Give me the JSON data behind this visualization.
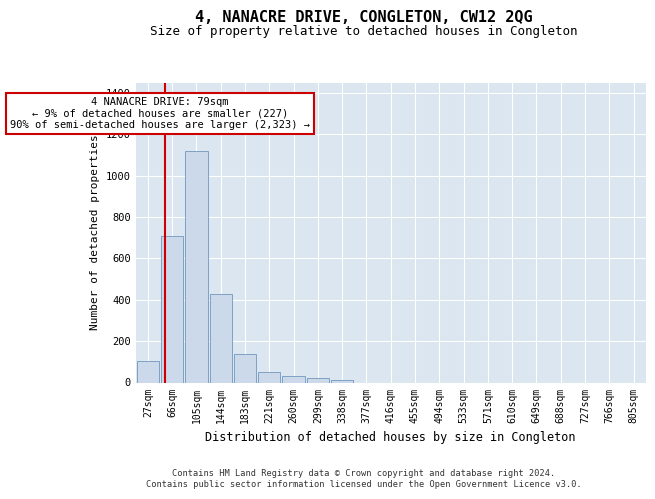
{
  "title": "4, NANACRE DRIVE, CONGLETON, CW12 2QG",
  "subtitle": "Size of property relative to detached houses in Congleton",
  "xlabel": "Distribution of detached houses by size in Congleton",
  "ylabel": "Number of detached properties",
  "bar_labels": [
    "27sqm",
    "66sqm",
    "105sqm",
    "144sqm",
    "183sqm",
    "221sqm",
    "260sqm",
    "299sqm",
    "338sqm",
    "377sqm",
    "416sqm",
    "455sqm",
    "494sqm",
    "533sqm",
    "571sqm",
    "610sqm",
    "649sqm",
    "688sqm",
    "727sqm",
    "766sqm",
    "805sqm"
  ],
  "bar_values": [
    105,
    710,
    1120,
    430,
    140,
    50,
    30,
    20,
    10,
    0,
    0,
    0,
    0,
    0,
    0,
    0,
    0,
    0,
    0,
    0,
    0
  ],
  "bar_color": "#ccd9ea",
  "bar_edge_color": "#7098be",
  "property_line_x": 0.72,
  "annotation_title": "4 NANACRE DRIVE: 79sqm",
  "annotation_line1": "← 9% of detached houses are smaller (227)",
  "annotation_line2": "90% of semi-detached houses are larger (2,323) →",
  "annotation_box_facecolor": "#ffffff",
  "annotation_box_edgecolor": "#cc0000",
  "vline_color": "#cc0000",
  "ylim": [
    0,
    1450
  ],
  "yticks": [
    0,
    200,
    400,
    600,
    800,
    1000,
    1200,
    1400
  ],
  "background_color": "#dce6f0",
  "grid_color": "#ffffff",
  "footer_line1": "Contains HM Land Registry data © Crown copyright and database right 2024.",
  "footer_line2": "Contains public sector information licensed under the Open Government Licence v3.0.",
  "title_fontsize": 11,
  "subtitle_fontsize": 9,
  "tick_fontsize": 7,
  "ylabel_fontsize": 8,
  "xlabel_fontsize": 8.5
}
